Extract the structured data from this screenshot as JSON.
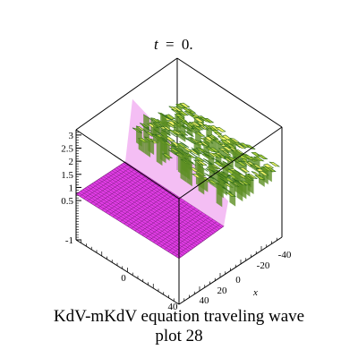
{
  "figure_caption": {
    "line1": "KdV-mKdV equation  traveling wave",
    "line2": "plot 28"
  },
  "chart_data": {
    "type": "surface",
    "title_lhs": "t",
    "title_rhs": "0.",
    "title_op": "=",
    "xlabel": "x",
    "ylabel": "",
    "zlabel": "",
    "x_ticks": [
      "-40",
      "-20",
      "0",
      "20",
      "40"
    ],
    "y_ticks": [
      "0",
      "40"
    ],
    "z_ticks": [
      "-1",
      "0.5",
      "1",
      "1.5",
      "2",
      "2.5",
      "3"
    ],
    "xlim": [
      -50,
      50
    ],
    "zlim": [
      -1,
      3.2
    ],
    "flat_level": 0.75,
    "oscillation_peak": 3,
    "colors": {
      "flat_surface": "#e23ce6",
      "mesh_lines": "#7a1f7e",
      "wave_light": "#f3f36a",
      "wave_dark": "#2f6a1a",
      "box": "#000000"
    }
  }
}
